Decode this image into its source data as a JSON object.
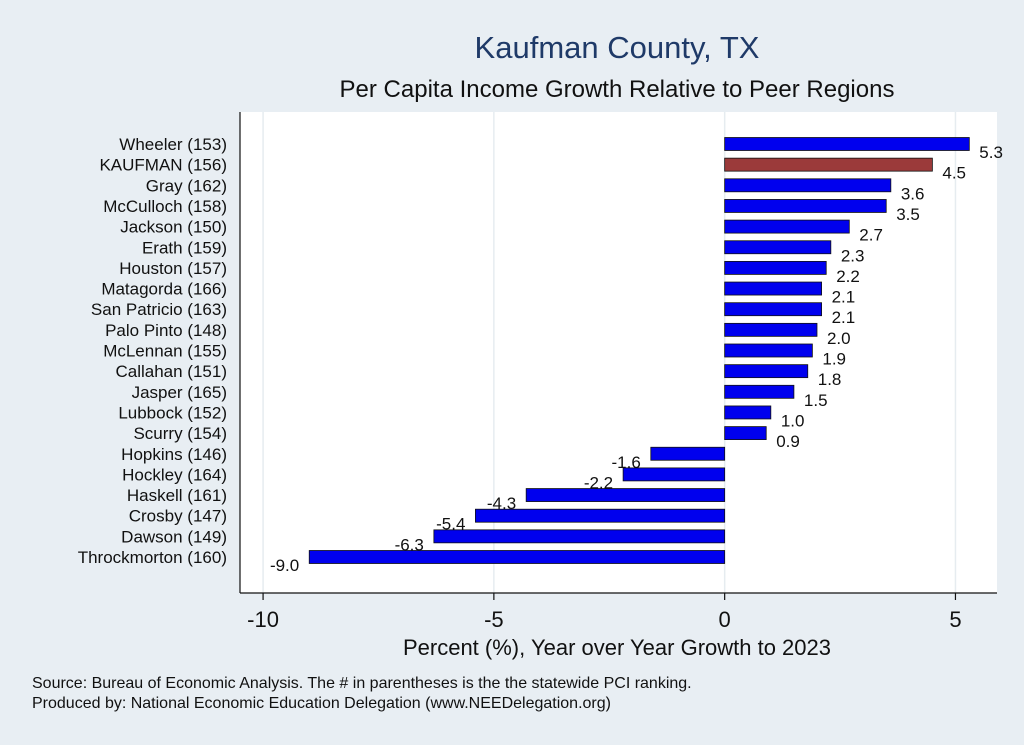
{
  "colors": {
    "background": "#e8eef3",
    "plot_background": "#ffffff",
    "bar": "#0000ee",
    "highlight_bar": "#9b3a3a",
    "title": "#1f3a68",
    "grid": "#e6ecf0"
  },
  "chart_data": {
    "type": "bar",
    "orientation": "horizontal",
    "title": "Kaufman County, TX",
    "subtitle": "Per Capita Income Growth Relative to Peer Regions",
    "xlabel": "Percent (%), Year over Year Growth to 2023",
    "ylabel": "",
    "xlim": [
      -10.5,
      5.9
    ],
    "xticks": [
      -10,
      -5,
      0,
      5
    ],
    "xtick_labels": [
      "-10",
      "-5",
      "0",
      "5"
    ],
    "grid": true,
    "highlight": "KAUFMAN (156)",
    "categories": [
      "Wheeler (153)",
      "KAUFMAN (156)",
      "Gray (162)",
      "McCulloch (158)",
      "Jackson (150)",
      "Erath (159)",
      "Houston (157)",
      "Matagorda (166)",
      "San Patricio (163)",
      "Palo Pinto (148)",
      "McLennan (155)",
      "Callahan (151)",
      "Jasper (165)",
      "Lubbock (152)",
      "Scurry (154)",
      "Hopkins (146)",
      "Hockley (164)",
      "Haskell (161)",
      "Crosby (147)",
      "Dawson (149)",
      "Throckmorton (160)"
    ],
    "values": [
      5.3,
      4.5,
      3.6,
      3.5,
      2.7,
      2.3,
      2.2,
      2.1,
      2.1,
      2.0,
      1.9,
      1.8,
      1.5,
      1.0,
      0.9,
      -1.6,
      -2.2,
      -4.3,
      -5.4,
      -6.3,
      -9.0
    ],
    "value_labels": [
      "5.3",
      "4.5",
      "3.6",
      "3.5",
      "2.7",
      "2.3",
      "2.2",
      "2.1",
      "2.1",
      "2.0",
      "1.9",
      "1.8",
      "1.5",
      "1.0",
      "0.9",
      "-1.6",
      "-2.2",
      "-4.3",
      "-5.4",
      "-6.3",
      "-9.0"
    ]
  },
  "notes": {
    "source": "Source: Bureau of Economic Analysis. The # in parentheses is the the statewide PCI ranking.",
    "produced_by": "Produced by: National Economic Education Delegation (www.NEEDelegation.org)"
  }
}
